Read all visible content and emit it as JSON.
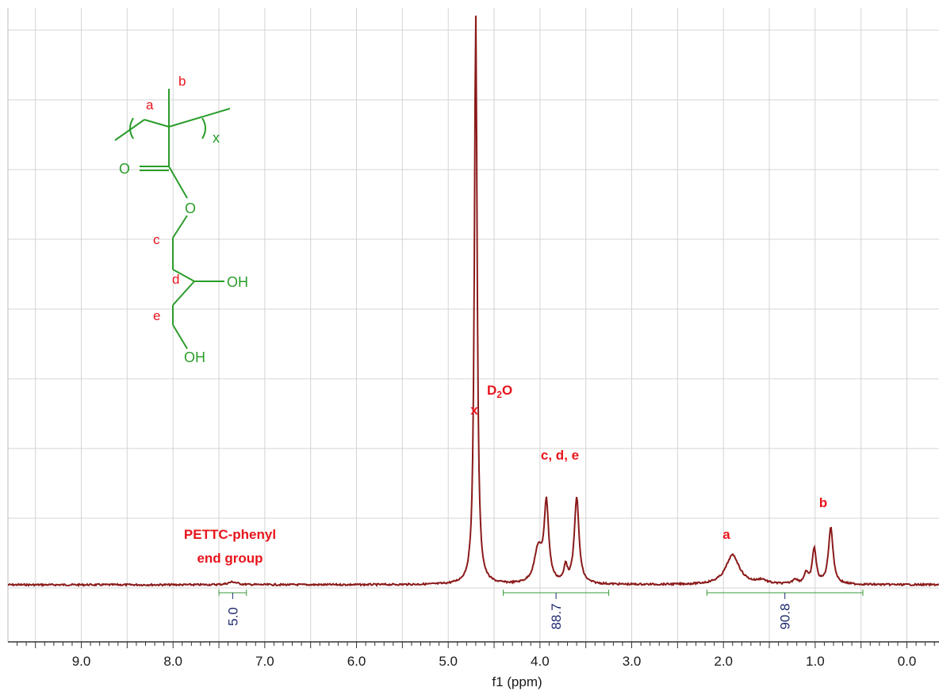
{
  "chart_data": {
    "type": "line",
    "title": "",
    "xlabel": "f1 (ppm)",
    "ylabel": "",
    "x_reversed": true,
    "xlim": [
      9.8,
      -0.35
    ],
    "grid": true,
    "x_ticks": [
      "9.0",
      "8.0",
      "7.0",
      "6.0",
      "5.0",
      "4.0",
      "3.0",
      "2.0",
      "1.0",
      "0.0"
    ],
    "x_tick_values": [
      9.0,
      8.0,
      7.0,
      6.0,
      5.0,
      4.0,
      3.0,
      2.0,
      1.0,
      0.0
    ],
    "series": [
      {
        "color": "#8b1a1a",
        "peaks": [
          {
            "x": 7.35,
            "height": 0.006,
            "width": 0.06
          },
          {
            "x": 4.7,
            "height": 1.2,
            "width": 0.018
          },
          {
            "x": 4.02,
            "height": 0.07,
            "width": 0.05
          },
          {
            "x": 3.93,
            "height": 0.165,
            "width": 0.03
          },
          {
            "x": 3.72,
            "height": 0.035,
            "width": 0.02
          },
          {
            "x": 3.6,
            "height": 0.182,
            "width": 0.03
          },
          {
            "x": 1.9,
            "height": 0.062,
            "width": 0.09
          },
          {
            "x": 1.58,
            "height": 0.008,
            "width": 0.06
          },
          {
            "x": 1.22,
            "height": 0.01,
            "width": 0.03
          },
          {
            "x": 1.1,
            "height": 0.022,
            "width": 0.025
          },
          {
            "x": 1.01,
            "height": 0.075,
            "width": 0.025
          },
          {
            "x": 0.83,
            "height": 0.12,
            "width": 0.03
          }
        ]
      }
    ],
    "integrals": [
      {
        "from": 7.5,
        "to": 7.2,
        "value": "5.0"
      },
      {
        "from": 4.4,
        "to": 3.25,
        "value": "88.7"
      },
      {
        "from": 2.18,
        "to": 0.48,
        "value": "90.8"
      }
    ],
    "annotations": [
      {
        "id": "pettc",
        "lines": [
          "PETTC-phenyl",
          "end group"
        ]
      },
      {
        "id": "d2o_marker",
        "text": "x"
      },
      {
        "id": "d2o",
        "text": "D",
        "sub": "2",
        "suffix": "O"
      },
      {
        "id": "cde",
        "text": "c, d, e"
      },
      {
        "id": "a",
        "text": "a"
      },
      {
        "id": "b",
        "text": "b"
      }
    ],
    "structure": {
      "labels": {
        "a": "a",
        "b": "b",
        "c": "c",
        "d": "d",
        "e": "e",
        "x": "x"
      },
      "atoms": {
        "O_carbonyl": "O",
        "O_ester": "O",
        "OH1": "OH",
        "OH2": "OH"
      }
    }
  }
}
